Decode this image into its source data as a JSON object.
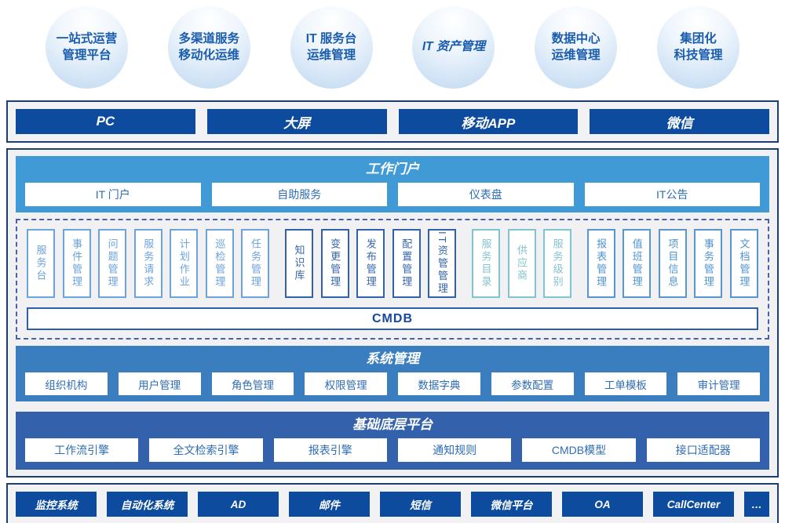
{
  "capabilities": [
    {
      "line1": "一站式运营",
      "line2": "管理平台"
    },
    {
      "line1": "多渠道服务",
      "line2": "移动化运维"
    },
    {
      "line1": "IT 服务台",
      "line2": "运维管理"
    },
    {
      "line1": "IT 资产管理",
      "line2": ""
    },
    {
      "line1": "数据中心",
      "line2": "运维管理"
    },
    {
      "line1": "集团化",
      "line2": "科技管理"
    }
  ],
  "channels": {
    "items": [
      "PC",
      "大屏",
      "移动APP",
      "微信"
    ]
  },
  "portal": {
    "title": "工作门户",
    "items": [
      "IT 门户",
      "自助服务",
      "仪表盘",
      "IT公告"
    ]
  },
  "modules": {
    "groups": [
      {
        "tone": "light-blue",
        "items": [
          "服务台",
          "事件管理",
          "问题管理",
          "服务请求",
          "计划作业",
          "巡检管理",
          "任务管理"
        ]
      },
      {
        "tone": "navy",
        "items": [
          "知识库",
          "变更管理",
          "发布管理",
          "配置管理",
          "IT资管管理"
        ]
      },
      {
        "tone": "teal",
        "items": [
          "服务目录",
          "供应商",
          "服务级别"
        ]
      },
      {
        "tone": "blue",
        "items": [
          "报表管理",
          "值班管理",
          "项目信息",
          "事务管理",
          "文档管理"
        ]
      }
    ],
    "cmdb_label": "CMDB"
  },
  "system": {
    "title": "系统管理",
    "items": [
      "组织机构",
      "用户管理",
      "角色管理",
      "权限管理",
      "数据字典",
      "参数配置",
      "工单模板",
      "审计管理"
    ]
  },
  "platform": {
    "title": "基础底层平台",
    "items": [
      "工作流引擎",
      "全文检索引擎",
      "报表引擎",
      "通知规则",
      "CMDB模型",
      "接口适配器"
    ]
  },
  "integrations": {
    "items": [
      "监控系统",
      "自动化系统",
      "AD",
      "邮件",
      "短信",
      "微信平台",
      "OA",
      "CallCenter",
      "…"
    ]
  },
  "colors": {
    "navy_button": "#0c4b9e",
    "container_border": "#1f3e70",
    "portal_band": "#3f9ad5",
    "system_band": "#3b7ec0",
    "platform_band": "#3461ab",
    "module_light_blue": "#6ba3dc",
    "module_navy": "#2f62ab",
    "module_teal": "#7cc5d1",
    "module_blue": "#5596d3",
    "button_text_blue": "#2e6cb5"
  }
}
